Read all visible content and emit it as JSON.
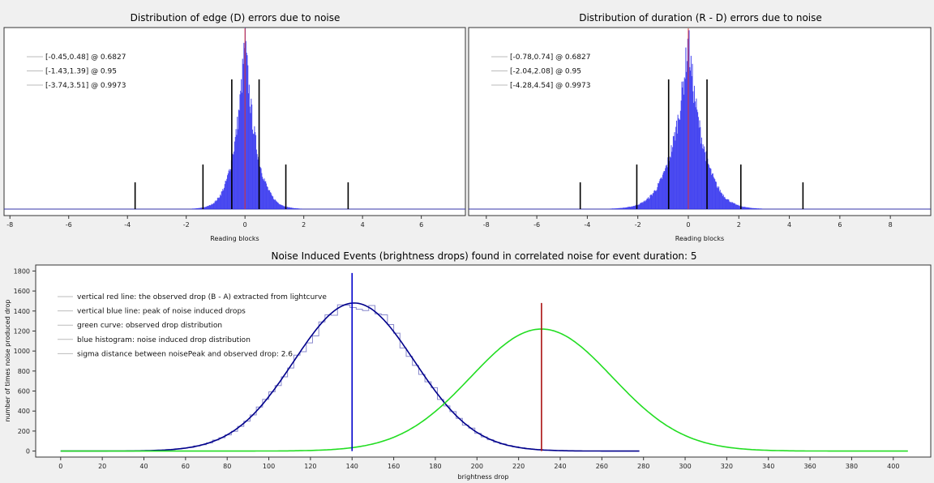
{
  "chart_data": [
    {
      "type": "histogram",
      "title": "Distribution of edge (D) errors due to noise",
      "xlabel": "Reading blocks",
      "xlim": [
        -8.2,
        7.5
      ],
      "xticks": [
        -8,
        -6,
        -4,
        -2,
        0,
        2,
        4,
        6
      ],
      "histogram": {
        "center": 0.0,
        "sigma_left": 0.45,
        "sigma_right": 0.48,
        "color": "#3333ee"
      },
      "red_line": 0.0,
      "interval_lines": [
        -0.45,
        0.48,
        -1.43,
        1.39,
        -3.74,
        3.51
      ],
      "legend": [
        "[-0.45,0.48] @ 0.6827",
        "[-1.43,1.39] @ 0.95",
        "[-3.74,3.51] @ 0.9973"
      ]
    },
    {
      "type": "histogram",
      "title": "Distribution of duration (R - D) errors due to noise",
      "xlabel": "Reading blocks",
      "xlim": [
        -8.7,
        9.6
      ],
      "xticks": [
        -8,
        -6,
        -4,
        -2,
        0,
        2,
        4,
        6,
        8
      ],
      "histogram": {
        "center": 0.0,
        "sigma_left": 0.78,
        "sigma_right": 0.74,
        "color": "#3333ee"
      },
      "red_line": 0.0,
      "interval_lines": [
        -0.78,
        0.74,
        -2.04,
        2.08,
        -4.28,
        4.54
      ],
      "legend": [
        "[-0.78,0.74] @ 0.6827",
        "[-2.04,2.08] @ 0.95",
        "[-4.28,4.54] @ 0.9973"
      ]
    },
    {
      "type": "line",
      "title": "Noise Induced Events (brightness drops) found in correlated noise for event duration: 5",
      "xlabel": "brightness drop",
      "ylabel": "number of times noise produced drop",
      "xlim": [
        -12,
        418
      ],
      "ylim": [
        -60,
        1860
      ],
      "xticks": [
        0,
        20,
        40,
        60,
        80,
        100,
        120,
        140,
        160,
        180,
        200,
        220,
        240,
        260,
        280,
        300,
        320,
        340,
        360,
        380,
        400
      ],
      "yticks": [
        0,
        200,
        400,
        600,
        800,
        1000,
        1200,
        1400,
        1600,
        1800
      ],
      "series": [
        {
          "peak_x": 141,
          "sigma": 29,
          "amplitude": 1480,
          "x_range": [
            0,
            278
          ],
          "color": "#00008b"
        },
        {
          "peak_x": 231,
          "sigma": 34,
          "amplitude": 1220,
          "x_range": [
            0,
            407
          ],
          "color": "#22dd22"
        }
      ],
      "noise_peak_line": {
        "x": 140,
        "y_top": 1780,
        "color": "#0000cc"
      },
      "observed_drop_line": {
        "x": 231,
        "y_top": 1480,
        "color": "#aa1111"
      },
      "legend": [
        "vertical red line: the observed drop (B - A) extracted from lightcurve",
        "vertical blue line: peak of noise induced drops",
        "green curve: observed drop distribution",
        "blue histogram: noise induced drop distribution",
        "sigma distance between noisePeak and observed drop: 2.6"
      ]
    }
  ]
}
